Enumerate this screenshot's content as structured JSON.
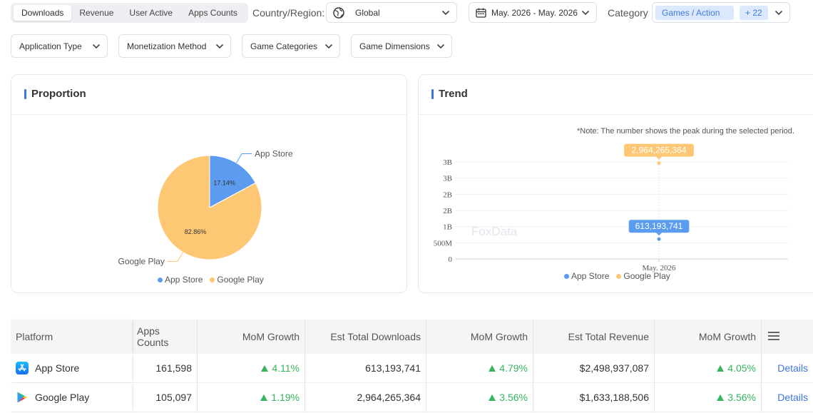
{
  "metric_tabs": [
    {
      "label": "Downloads",
      "active": true
    },
    {
      "label": "Revenue",
      "active": false
    },
    {
      "label": "User Active",
      "active": false
    },
    {
      "label": "Apps Counts",
      "active": false
    }
  ],
  "filters": {
    "country_label": "Country/Region:",
    "country_value": "Global",
    "date_value": "May. 2026 - May. 2026",
    "category_label": "Category",
    "category_chip": "Games / Action",
    "category_more": "+ 22",
    "second_row": [
      "Application Type",
      "Monetization Method",
      "Game Categories",
      "Game Dimensions"
    ]
  },
  "proportion": {
    "title": "Proportion",
    "chart_data": {
      "type": "pie",
      "labels": [
        "App Store",
        "Google Play"
      ],
      "values": [
        17.14,
        82.86
      ],
      "value_labels": [
        "17.14%",
        "82.86%"
      ],
      "colors": [
        "#5b9cf0",
        "#fec774"
      ],
      "legend": [
        "App Store",
        "Google Play"
      ],
      "legend_position": "bottom"
    }
  },
  "trend": {
    "title": "Trend",
    "note": "*Note: The number shows the peak during the selected period.",
    "watermark": "FoxData",
    "chart_data": {
      "type": "scatter",
      "categories": [
        "May. 2026"
      ],
      "series": [
        {
          "name": "App Store",
          "values": [
            613193741
          ],
          "color": "#5b9cf0",
          "label": "613,193,741"
        },
        {
          "name": "Google Play",
          "values": [
            2964265364
          ],
          "color": "#fec774",
          "label": "2,964,265,364"
        }
      ],
      "y_ticks": [
        "0",
        "500M",
        "1B",
        "2B",
        "2B",
        "3B",
        "3B"
      ],
      "ylim": [
        0,
        3000000000
      ],
      "grid": true,
      "legend": [
        "App Store",
        "Google Play"
      ],
      "legend_position": "bottom"
    }
  },
  "table": {
    "headers": [
      "Platform",
      "Apps Counts",
      "MoM Growth",
      "Est Total Downloads",
      "MoM Growth",
      "Est Total Revenue",
      "MoM Growth"
    ],
    "rows": [
      {
        "platform": "App Store",
        "apps_counts": "161,598",
        "mom1": "4.11%",
        "downloads": "613,193,741",
        "mom2": "4.79%",
        "revenue": "$2,498,937,087",
        "mom3": "4.05%",
        "action": "Details"
      },
      {
        "platform": "Google Play",
        "apps_counts": "105,097",
        "mom1": "1.19%",
        "downloads": "2,964,265,364",
        "mom2": "3.56%",
        "revenue": "$1,633,188,506",
        "mom3": "3.56%",
        "action": "Details"
      }
    ]
  }
}
